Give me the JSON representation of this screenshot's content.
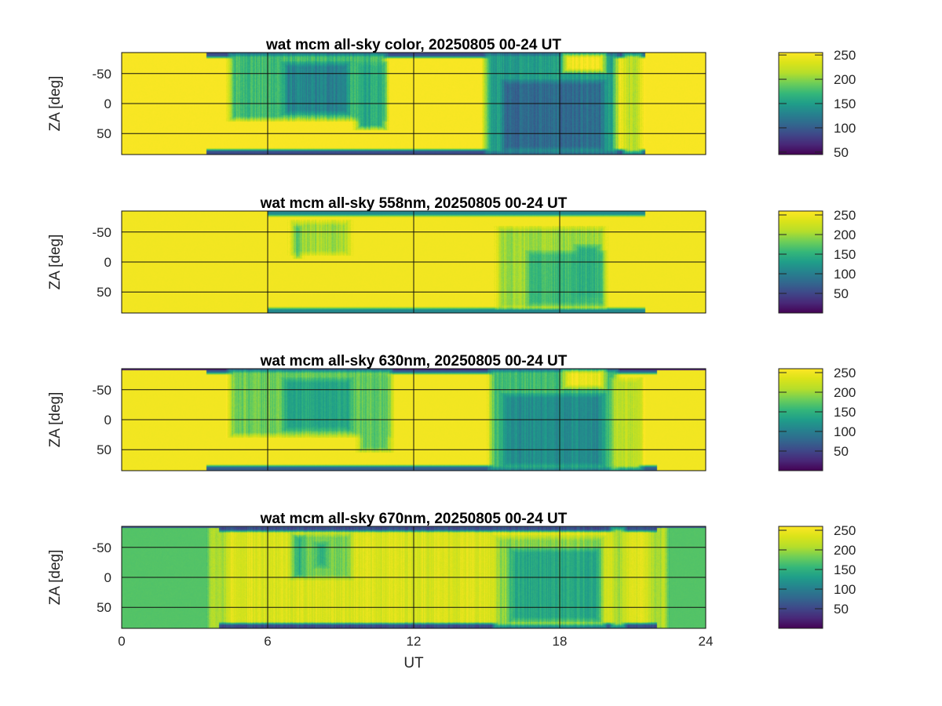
{
  "figure": {
    "xlabel": "UT",
    "ylabel": "ZA [deg]"
  },
  "chart_data": [
    {
      "type": "heatmap",
      "title": "wat mcm all-sky color, 20250805 00-24 UT",
      "xlabel": "",
      "ylabel": "ZA [deg]",
      "xlim": [
        0,
        24
      ],
      "ylim": [
        -85,
        85
      ],
      "y_reversed": true,
      "xticks": [
        0,
        6,
        12,
        18,
        24
      ],
      "xtick_labels_shown": false,
      "yticks": [
        -50,
        0,
        50
      ],
      "ytick_labels": [
        "-50",
        "0",
        "50"
      ],
      "grid": true,
      "colormap": "viridis",
      "clim": [
        45,
        255
      ],
      "colorbar_ticks": [
        50,
        100,
        150,
        200,
        250
      ],
      "colorbar_labels": [
        "50",
        "100",
        "150",
        "200",
        "250"
      ],
      "background_value": 252,
      "features": [
        {
          "kind": "edge_dark",
          "ut": [
            3.5,
            21.5
          ],
          "value": 90
        },
        {
          "kind": "patch",
          "ut": [
            4.3,
            11.0
          ],
          "za": [
            -85,
            30
          ],
          "value": 175
        },
        {
          "kind": "patch",
          "ut": [
            6.5,
            9.5
          ],
          "za": [
            -70,
            20
          ],
          "value": 130
        },
        {
          "kind": "patch",
          "ut": [
            9.5,
            11.0
          ],
          "za": [
            -70,
            45
          ],
          "value": 160
        },
        {
          "kind": "patch",
          "ut": [
            14.8,
            20.5
          ],
          "za": [
            -85,
            85
          ],
          "value": 150
        },
        {
          "kind": "patch",
          "ut": [
            15.5,
            20.0
          ],
          "za": [
            -40,
            80
          ],
          "value": 110
        },
        {
          "kind": "patch",
          "ut": [
            18.0,
            20.0
          ],
          "za": [
            -85,
            -50
          ],
          "value": 248
        },
        {
          "kind": "patch",
          "ut": [
            20.5,
            21.5
          ],
          "za": [
            -85,
            85
          ],
          "value": 215
        }
      ]
    },
    {
      "type": "heatmap",
      "title": "wat mcm all-sky 558nm, 20250805 00-24 UT",
      "xlabel": "",
      "ylabel": "ZA [deg]",
      "xlim": [
        0,
        24
      ],
      "ylim": [
        -85,
        85
      ],
      "y_reversed": true,
      "xticks": [
        0,
        6,
        12,
        18,
        24
      ],
      "xtick_labels_shown": false,
      "yticks": [
        -50,
        0,
        50
      ],
      "ytick_labels": [
        "-50",
        "0",
        "50"
      ],
      "grid": true,
      "colormap": "viridis",
      "clim": [
        0,
        260
      ],
      "colorbar_ticks": [
        50,
        100,
        150,
        200,
        250
      ],
      "colorbar_labels": [
        "50",
        "100",
        "150",
        "200",
        "250"
      ],
      "background_value": 252,
      "features": [
        {
          "kind": "edge_dark",
          "ut": [
            6.0,
            21.5
          ],
          "value": 110
        },
        {
          "kind": "patch",
          "ut": [
            6.8,
            9.5
          ],
          "za": [
            -70,
            -10
          ],
          "value": 200
        },
        {
          "kind": "patch",
          "ut": [
            7.0,
            7.5
          ],
          "za": [
            -60,
            -5
          ],
          "value": 160
        },
        {
          "kind": "patch",
          "ut": [
            15.3,
            20.0
          ],
          "za": [
            -60,
            80
          ],
          "value": 200
        },
        {
          "kind": "patch",
          "ut": [
            16.5,
            20.0
          ],
          "za": [
            -20,
            75
          ],
          "value": 160
        },
        {
          "kind": "patch",
          "ut": [
            18.5,
            19.8
          ],
          "za": [
            -30,
            60
          ],
          "value": 150
        }
      ]
    },
    {
      "type": "heatmap",
      "title": "wat mcm all-sky 630nm, 20250805 00-24 UT",
      "xlabel": "",
      "ylabel": "ZA [deg]",
      "xlim": [
        0,
        24
      ],
      "ylim": [
        -85,
        85
      ],
      "y_reversed": true,
      "xticks": [
        0,
        6,
        12,
        18,
        24
      ],
      "xtick_labels_shown": false,
      "yticks": [
        -50,
        0,
        50
      ],
      "ytick_labels": [
        "-50",
        "0",
        "50"
      ],
      "grid": true,
      "colormap": "viridis",
      "clim": [
        0,
        260
      ],
      "colorbar_ticks": [
        50,
        100,
        150,
        200,
        250
      ],
      "colorbar_labels": [
        "50",
        "100",
        "150",
        "200",
        "250"
      ],
      "background_value": 252,
      "features": [
        {
          "kind": "edge_dark",
          "ut": [
            3.5,
            22.0
          ],
          "value": 70
        },
        {
          "kind": "top_band",
          "ut": [
            0,
            24
          ],
          "value": 20
        },
        {
          "kind": "patch",
          "ut": [
            4.3,
            11.2
          ],
          "za": [
            -85,
            30
          ],
          "value": 180
        },
        {
          "kind": "patch",
          "ut": [
            6.5,
            9.6
          ],
          "za": [
            -70,
            20
          ],
          "value": 140
        },
        {
          "kind": "patch",
          "ut": [
            9.6,
            11.2
          ],
          "za": [
            -75,
            55
          ],
          "value": 175
        },
        {
          "kind": "patch",
          "ut": [
            15.0,
            20.5
          ],
          "za": [
            -85,
            85
          ],
          "value": 160
        },
        {
          "kind": "patch",
          "ut": [
            15.5,
            20.0
          ],
          "za": [
            -45,
            80
          ],
          "value": 115
        },
        {
          "kind": "patch",
          "ut": [
            18.0,
            20.0
          ],
          "za": [
            -85,
            -50
          ],
          "value": 248
        },
        {
          "kind": "patch",
          "ut": [
            20.0,
            21.5
          ],
          "za": [
            -70,
            85
          ],
          "value": 215
        }
      ]
    },
    {
      "type": "heatmap",
      "title": "wat mcm all-sky 670nm, 20250805 00-24 UT",
      "xlabel": "UT",
      "ylabel": "ZA [deg]",
      "xlim": [
        0,
        24
      ],
      "ylim": [
        -85,
        85
      ],
      "y_reversed": true,
      "xticks": [
        0,
        6,
        12,
        18,
        24
      ],
      "xtick_labels": [
        "0",
        "6",
        "12",
        "18",
        "24"
      ],
      "xtick_labels_shown": true,
      "yticks": [
        -50,
        0,
        50
      ],
      "ytick_labels": [
        "-50",
        "0",
        "50"
      ],
      "grid": true,
      "colormap": "viridis",
      "clim": [
        0,
        260
      ],
      "colorbar_ticks": [
        50,
        100,
        150,
        200,
        250
      ],
      "colorbar_labels": [
        "50",
        "100",
        "150",
        "200",
        "250"
      ],
      "background_value": 170,
      "features": [
        {
          "kind": "patch",
          "ut": [
            3.5,
            22.5
          ],
          "za": [
            -85,
            85
          ],
          "value": 235
        },
        {
          "kind": "patch",
          "ut": [
            3.5,
            4.5
          ],
          "za": [
            -85,
            85
          ],
          "value": 205
        },
        {
          "kind": "patch",
          "ut": [
            21.5,
            22.5
          ],
          "za": [
            -85,
            85
          ],
          "value": 205
        },
        {
          "kind": "edge_dark",
          "ut": [
            4.0,
            22.0
          ],
          "value": 55
        },
        {
          "kind": "top_band",
          "ut": [
            0,
            24
          ],
          "value": 60
        },
        {
          "kind": "patch",
          "ut": [
            6.8,
            9.6
          ],
          "za": [
            -75,
            5
          ],
          "value": 185
        },
        {
          "kind": "patch",
          "ut": [
            7.0,
            7.6
          ],
          "za": [
            -70,
            0
          ],
          "value": 135
        },
        {
          "kind": "patch",
          "ut": [
            7.8,
            8.6
          ],
          "za": [
            -60,
            -15
          ],
          "value": 150
        },
        {
          "kind": "patch",
          "ut": [
            15.2,
            20.0
          ],
          "za": [
            -70,
            85
          ],
          "value": 190
        },
        {
          "kind": "patch",
          "ut": [
            15.8,
            19.8
          ],
          "za": [
            -50,
            75
          ],
          "value": 140
        },
        {
          "kind": "patch",
          "ut": [
            20.0,
            20.8
          ],
          "za": [
            -85,
            85
          ],
          "value": 205
        }
      ]
    }
  ]
}
